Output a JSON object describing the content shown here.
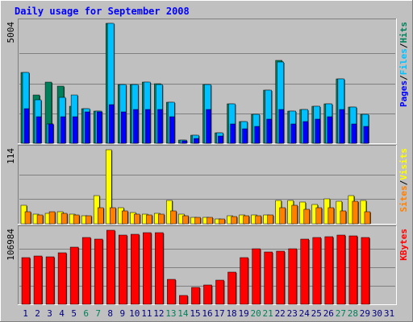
{
  "chart_data": {
    "type": "bar",
    "title": "Daily usage for September 2008",
    "categories": [
      "1",
      "2",
      "3",
      "4",
      "5",
      "6",
      "7",
      "8",
      "9",
      "10",
      "11",
      "12",
      "13",
      "14",
      "15",
      "16",
      "17",
      "18",
      "19",
      "20",
      "21",
      "22",
      "23",
      "24",
      "25",
      "26",
      "27",
      "28",
      "29",
      "30",
      "31"
    ],
    "weekend_days": [
      "6",
      "7",
      "13",
      "14",
      "20",
      "21",
      "27",
      "28"
    ],
    "panels": [
      {
        "id": "hits-files-pages",
        "max_label": "5004",
        "ymax": 5004,
        "series": [
          {
            "name": "Hits",
            "color": "#00805a",
            "values": [
              2950,
              2000,
              2550,
              2400,
              1550,
              1450,
              1350,
              5004,
              2450,
              2450,
              2550,
              2500,
              1700,
              150,
              350,
              2450,
              450,
              1650,
              900,
              1200,
              2200,
              3450,
              1350,
              1400,
              1550,
              1650,
              2700,
              1500,
              1200,
              0,
              0
            ]
          },
          {
            "name": "Files",
            "color": "#00c0ff",
            "values": [
              2950,
              1800,
              800,
              1900,
              2000,
              1450,
              1350,
              5004,
              2450,
              2450,
              2550,
              2450,
              1700,
              150,
              350,
              2450,
              450,
              1650,
              900,
              1200,
              2200,
              3400,
              1350,
              1400,
              1550,
              1650,
              2700,
              1500,
              1200,
              0,
              0
            ]
          },
          {
            "name": "Pages",
            "color": "#0000ff",
            "values": [
              1450,
              1100,
              800,
              1100,
              1100,
              1300,
              1300,
              1600,
              1300,
              1400,
              1400,
              1400,
              1100,
              100,
              200,
              1400,
              300,
              800,
              600,
              700,
              1000,
              1400,
              800,
              900,
              1000,
              1100,
              1400,
              800,
              700,
              0,
              0
            ]
          }
        ],
        "legend": [
          "Pages",
          "/",
          "Files",
          "/",
          "Hits"
        ]
      },
      {
        "id": "visits-sites",
        "max_label": "114",
        "ymax": 114,
        "series": [
          {
            "name": "Visits",
            "color": "#ffff00",
            "values": [
              28,
              15,
              16,
              18,
              15,
              12,
              43,
              114,
              25,
              17,
              15,
              16,
              36,
              15,
              10,
              10,
              8,
              12,
              14,
              14,
              14,
              36,
              36,
              34,
              30,
              38,
              35,
              43,
              36,
              0,
              0
            ]
          },
          {
            "name": "Sites",
            "color": "#ff8000",
            "values": [
              18,
              14,
              18,
              16,
              14,
              12,
              25,
              25,
              20,
              15,
              14,
              15,
              20,
              13,
              10,
              10,
              8,
              11,
              13,
              13,
              14,
              25,
              28,
              22,
              25,
              25,
              20,
              35,
              18,
              0,
              0
            ]
          }
        ],
        "legend": [
          "Sites",
          "/",
          "Visits"
        ]
      },
      {
        "id": "kbytes",
        "max_label": "106984",
        "ymax": 106984,
        "series": [
          {
            "name": "KBytes",
            "color": "#ff0000",
            "values": [
              68000,
              70000,
              69000,
              75000,
              82000,
              97000,
              94000,
              106984,
              100000,
              101000,
              104000,
              103000,
              36000,
              13000,
              24000,
              28000,
              35000,
              47000,
              68000,
              80000,
              76000,
              77000,
              80000,
              94000,
              96000,
              98000,
              100000,
              99000,
              97000,
              0,
              0
            ]
          }
        ],
        "legend": [
          "KBytes"
        ]
      }
    ],
    "colors": {
      "background": "#c0c0c0",
      "border_light": "#ffffff",
      "border_dark": "#7f7f7f",
      "title": "#0000ff",
      "weekday_label": "#000080",
      "weekend_label": "#00805a",
      "gridline": "#808080",
      "legend_separator": "#000000"
    }
  }
}
